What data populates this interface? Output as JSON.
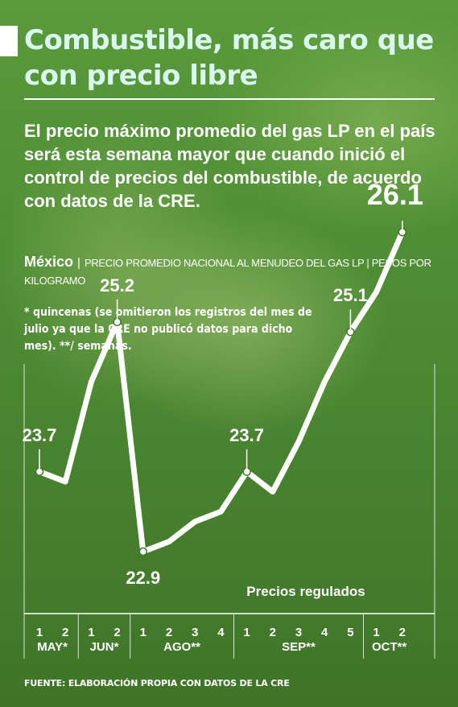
{
  "header": {
    "title": "Combustible, más caro que con precio libre",
    "intro": "El precio máximo promedio del gas LP en el país será esta semana mayor que cuando inició el control de precios del combustible, de acuerdo con datos de la CRE."
  },
  "subhead": {
    "country": "México",
    "unit": "PRECIO PROMEDIO NACIONAL AL MENUDEO DEL GAS LP | PESOS POR KILOGRAMO"
  },
  "note": "* quincenas (se omitieron los registros del mes de julio ya que la CRE no publicó datos para dicho mes). **/ semanas.",
  "source": "FUENTE: ELABORACIÓN PROPIA CON DATOS DE LA CRE",
  "colors": {
    "line": "#ffffff",
    "title": "#d9f7ee",
    "background": "#4f8e34"
  },
  "chart_data": {
    "type": "line",
    "title": "Precios regulados",
    "ylabel": "",
    "xlabel": "",
    "ylim": [
      22.6,
      26.3
    ],
    "grid": false,
    "groups": [
      {
        "label": "MAY*",
        "ticks": [
          "1",
          "2"
        ]
      },
      {
        "label": "JUN*",
        "ticks": [
          "1",
          "2"
        ]
      },
      {
        "label": "AGO**",
        "ticks": [
          "1",
          "2",
          "3",
          "4"
        ]
      },
      {
        "label": "SEP**",
        "ticks": [
          "1",
          "2",
          "3",
          "4",
          "5"
        ]
      },
      {
        "label": "OCT**",
        "ticks": [
          "1",
          "2"
        ]
      }
    ],
    "series": [
      {
        "values": [
          23.7,
          23.6,
          24.6,
          25.2,
          22.9,
          23.0,
          23.2,
          23.3,
          23.7,
          23.5,
          24.0,
          24.6,
          25.1,
          25.5,
          26.1
        ],
        "labeled": [
          {
            "index": 0,
            "text": "23.7"
          },
          {
            "index": 3,
            "text": "25.2"
          },
          {
            "index": 4,
            "text": "22.9"
          },
          {
            "index": 8,
            "text": "23.7"
          },
          {
            "index": 12,
            "text": "25.1"
          },
          {
            "index": 14,
            "text": "26.1"
          }
        ]
      }
    ]
  }
}
